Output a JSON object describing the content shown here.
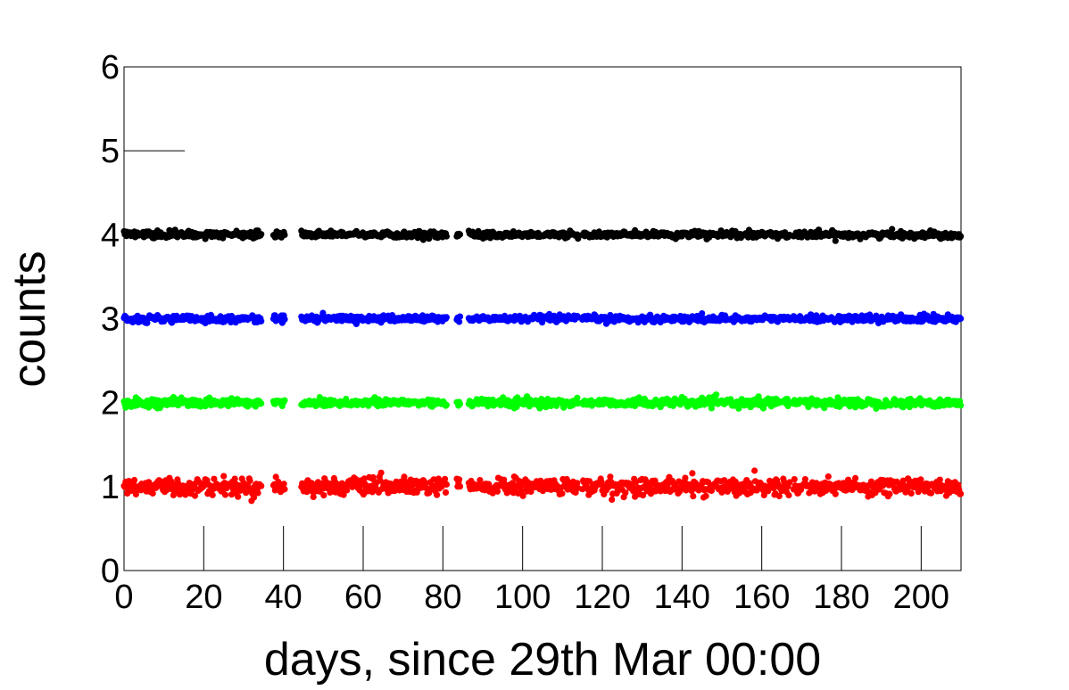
{
  "chart_data": {
    "type": "scatter",
    "title": "",
    "xlabel": "days, since 29th Mar 00:00",
    "ylabel": "counts",
    "xlim": [
      0,
      210
    ],
    "ylim": [
      0,
      6
    ],
    "x_ticks": [
      0,
      20,
      40,
      60,
      80,
      100,
      120,
      140,
      160,
      180,
      200
    ],
    "y_ticks": [
      0,
      1,
      2,
      3,
      4,
      5,
      6
    ],
    "grid": false,
    "legend": "none",
    "x_segments": [
      [
        0,
        34.5
      ],
      [
        37.5,
        40.5
      ],
      [
        44.5,
        81
      ],
      [
        83.5,
        84.5
      ],
      [
        86.5,
        114
      ],
      [
        115,
        151.5
      ],
      [
        152,
        167
      ],
      [
        168,
        170
      ],
      [
        170.5,
        210
      ]
    ],
    "series": [
      {
        "color": "#000000",
        "baseline": 4,
        "spread": 0.02
      },
      {
        "color": "#0000ff",
        "baseline": 3,
        "spread": 0.02
      },
      {
        "color": "#00ff00",
        "baseline": 2,
        "spread": 0.025
      },
      {
        "color": "#ff0000",
        "baseline": 1,
        "spread": 0.05
      }
    ]
  }
}
